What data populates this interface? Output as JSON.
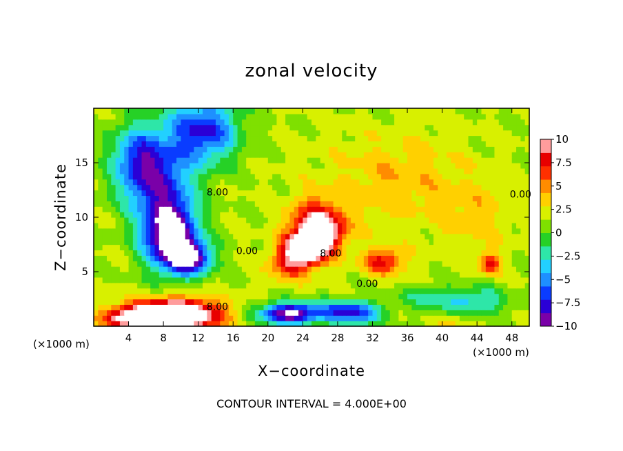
{
  "chart_data": {
    "type": "heatmap",
    "title": "zonal velocity",
    "xlabel": "X−coordinate",
    "ylabel": "Z−coordinate",
    "x_unit_label": "(×1000 m)",
    "z_unit_label": "(×1000 m)",
    "contour_interval_text": "CONTOUR INTERVAL = 4.000E+00",
    "xlim": [
      0,
      50
    ],
    "ylim": [
      0,
      20
    ],
    "xticks": [
      "4",
      "8",
      "12",
      "16",
      "20",
      "24",
      "28",
      "32",
      "36",
      "40",
      "44",
      "48"
    ],
    "xtick_values": [
      4,
      8,
      12,
      16,
      20,
      24,
      28,
      32,
      36,
      40,
      44,
      48
    ],
    "yticks": [
      "5",
      "10",
      "15"
    ],
    "ytick_values": [
      5,
      10,
      15
    ],
    "colorbar": {
      "range": [
        -10,
        10
      ],
      "labels": [
        "10",
        "7.5",
        "5",
        "2.5",
        "0",
        "−2.5",
        "−5",
        "−7.5",
        "−10"
      ],
      "label_values": [
        10,
        7.5,
        5,
        2.5,
        0,
        -2.5,
        -5,
        -7.5,
        -10
      ],
      "colormap": [
        "#7a00a8",
        "#2a00d6",
        "#0a3cff",
        "#1e90ff",
        "#22d0ff",
        "#2ee6a8",
        "#26d126",
        "#7fe000",
        "#d8f000",
        "#ffd000",
        "#ff8c00",
        "#ff3000",
        "#e80000",
        "#ff9c9c"
      ]
    },
    "contour_labels": [
      {
        "text": "8.00",
        "x": 14.2,
        "z": 12.0
      },
      {
        "text": "0.00",
        "x": 17.6,
        "z": 6.6
      },
      {
        "text": "8.00",
        "x": 27.2,
        "z": 6.4
      },
      {
        "text": "0.00",
        "x": 31.4,
        "z": 3.6
      },
      {
        "text": "8.00",
        "x": 14.2,
        "z": 1.5
      },
      {
        "text": "0.00",
        "x": 49.0,
        "z": 11.8
      }
    ],
    "features": [
      {
        "kind": "jet_core",
        "x": 8.7,
        "z": 8.6,
        "u": -13
      },
      {
        "kind": "jet_core",
        "x": 11.0,
        "z": 6.3,
        "u": -11
      },
      {
        "kind": "jet_core",
        "x": 9.5,
        "z": 1.1,
        "u": 14
      },
      {
        "kind": "jet_core",
        "x": 24.5,
        "z": 7.2,
        "u": 13
      },
      {
        "kind": "jet_core",
        "x": 22.5,
        "z": 1.2,
        "u": -12
      },
      {
        "kind": "jet_core",
        "x": 29.5,
        "z": 1.3,
        "u": -9
      }
    ]
  },
  "caption": {
    "title": "zonal velocity",
    "xlabel": "X−coordinate",
    "ylabel": "Z−coordinate",
    "x_unit": "(×1000 m)",
    "z_unit": "(×1000 m)",
    "interval": "CONTOUR INTERVAL = 4.000E+00"
  }
}
